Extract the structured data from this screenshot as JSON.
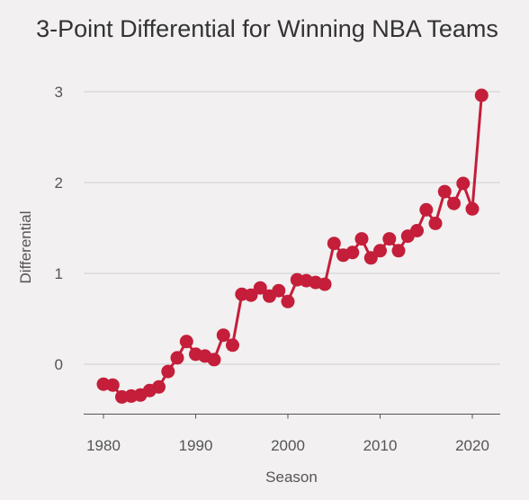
{
  "chart_data": {
    "type": "line",
    "title": "3-Point Differential for Winning NBA Teams",
    "xlabel": "Season",
    "ylabel": "Differential",
    "xlim": [
      1977.5,
      2023
    ],
    "ylim": [
      -0.55,
      3.2
    ],
    "x_ticks": [
      1980,
      1990,
      2000,
      2010,
      2020
    ],
    "x_tick_labels": [
      "1980",
      "1990",
      "2000",
      "2010",
      "2020"
    ],
    "y_ticks": [
      0,
      1,
      2,
      3
    ],
    "y_tick_labels": [
      "0",
      "1",
      "2",
      "3"
    ],
    "grid": "horizontal",
    "legend": "none",
    "series": [
      {
        "color": "#c41e3a",
        "x": [
          1980,
          1981,
          1982,
          1983,
          1984,
          1985,
          1986,
          1987,
          1988,
          1989,
          1990,
          1991,
          1992,
          1993,
          1994,
          1995,
          1996,
          1997,
          1998,
          1999,
          2000,
          2001,
          2002,
          2003,
          2004,
          2005,
          2006,
          2007,
          2008,
          2009,
          2010,
          2011,
          2012,
          2013,
          2014,
          2015,
          2016,
          2017,
          2018,
          2019,
          2020,
          2021
        ],
        "y": [
          -0.22,
          -0.23,
          -0.36,
          -0.35,
          -0.34,
          -0.29,
          -0.25,
          -0.08,
          0.07,
          0.25,
          0.11,
          0.09,
          0.05,
          0.32,
          0.21,
          0.77,
          0.76,
          0.84,
          0.75,
          0.81,
          0.69,
          0.93,
          0.92,
          0.9,
          0.88,
          1.33,
          1.2,
          1.23,
          1.38,
          1.17,
          1.25,
          1.38,
          1.25,
          1.41,
          1.47,
          1.7,
          1.55,
          1.9,
          1.77,
          1.99,
          1.71,
          2.96
        ]
      }
    ]
  }
}
